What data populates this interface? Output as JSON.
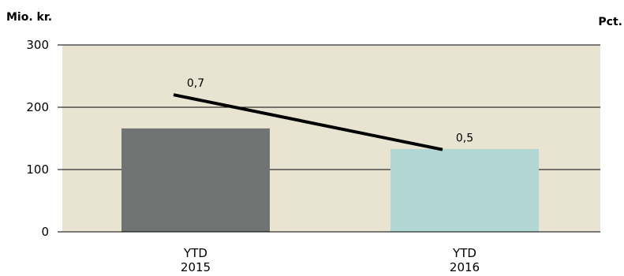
{
  "chart_data": {
    "type": "bar",
    "unit_left": "Mio. kr.",
    "unit_right": "Pct.",
    "categories": [
      [
        "YTD",
        "2015"
      ],
      [
        "YTD",
        "2016"
      ]
    ],
    "ylim": [
      0,
      300
    ],
    "yticks": [
      0,
      100,
      200,
      300
    ],
    "grid": true,
    "series": [
      {
        "type": "bar",
        "values": [
          166,
          133
        ],
        "colors": [
          "#6f7372",
          "#b2d6d4"
        ]
      },
      {
        "type": "line",
        "axis": "right",
        "values": [
          0.7,
          0.5
        ],
        "labels": [
          "0,7",
          "0,5"
        ],
        "color": "#000000"
      }
    ],
    "plot_background": "#e9e4d2"
  }
}
